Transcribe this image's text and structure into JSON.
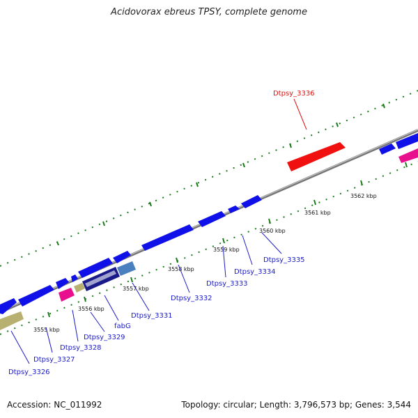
{
  "title": "Acidovorax ebreus TPSY, complete genome",
  "footer": {
    "accession": "Accession: NC_011992",
    "stats": "Topology: circular; Length: 3,796,573 bp; Genes: 3,544"
  },
  "kbp_ticks": [
    "3555 kbp",
    "3556 kbp",
    "3557 kbp",
    "3558 kbp",
    "3559 kbp",
    "3560 kbp",
    "3561 kbp",
    "3562 kbp"
  ],
  "gene_labels": [
    "Dtpsy_3326",
    "Dtpsy_3327",
    "Dtpsy_3328",
    "Dtpsy_3329",
    "fabG",
    "Dtpsy_3331",
    "Dtpsy_3332",
    "Dtpsy_3333",
    "Dtpsy_3334",
    "Dtpsy_3335",
    "Dtpsy_3336"
  ],
  "colors": {
    "cds_blue": "#1010e8",
    "highlight_red": "#f01010",
    "rna_pink": "#e8108c",
    "pseudo_khaki": "#b8b070",
    "steel_blue": "#4a80c0",
    "backbone": "#888888",
    "tick_green": "#1a7a1a",
    "label_blue": "#1a1acc"
  }
}
